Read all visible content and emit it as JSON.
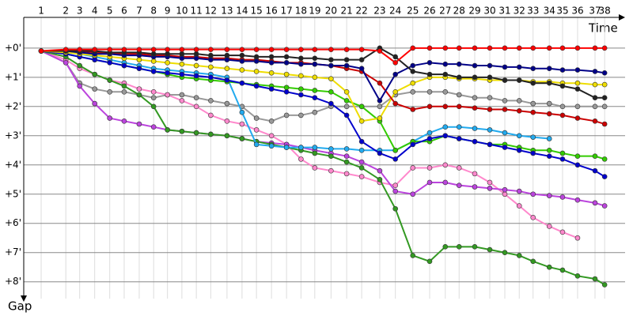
{
  "chart_data": {
    "type": "line",
    "x_label": "Time",
    "y_label": "Gap",
    "xlim": [
      0,
      100
    ],
    "ylim": [
      -1.05,
      8.9
    ],
    "grid": true,
    "xticks": [
      {
        "value": 2.9,
        "label": "1"
      },
      {
        "value": 7.0,
        "label": "2"
      },
      {
        "value": 9.3,
        "label": "3"
      },
      {
        "value": 11.8,
        "label": "4"
      },
      {
        "value": 14.3,
        "label": "5"
      },
      {
        "value": 16.7,
        "label": "6"
      },
      {
        "value": 19.2,
        "label": "7"
      },
      {
        "value": 21.6,
        "label": "8"
      },
      {
        "value": 23.9,
        "label": "9"
      },
      {
        "value": 26.3,
        "label": "10"
      },
      {
        "value": 28.7,
        "label": "11"
      },
      {
        "value": 31.1,
        "label": "12"
      },
      {
        "value": 33.8,
        "label": "13"
      },
      {
        "value": 36.3,
        "label": "14"
      },
      {
        "value": 38.7,
        "label": "15"
      },
      {
        "value": 41.2,
        "label": "16"
      },
      {
        "value": 43.7,
        "label": "17"
      },
      {
        "value": 46.1,
        "label": "18"
      },
      {
        "value": 48.4,
        "label": "19"
      },
      {
        "value": 51.1,
        "label": "20"
      },
      {
        "value": 53.7,
        "label": "21"
      },
      {
        "value": 56.2,
        "label": "22"
      },
      {
        "value": 59.2,
        "label": "23"
      },
      {
        "value": 61.8,
        "label": "24"
      },
      {
        "value": 64.7,
        "label": "25"
      },
      {
        "value": 67.5,
        "label": "26"
      },
      {
        "value": 70.1,
        "label": "27"
      },
      {
        "value": 72.4,
        "label": "28"
      },
      {
        "value": 75.0,
        "label": "29"
      },
      {
        "value": 77.5,
        "label": "30"
      },
      {
        "value": 80.0,
        "label": "31"
      },
      {
        "value": 82.4,
        "label": "32"
      },
      {
        "value": 84.7,
        "label": "33"
      },
      {
        "value": 87.4,
        "label": "34"
      },
      {
        "value": 89.6,
        "label": "35"
      },
      {
        "value": 92.1,
        "label": "36"
      },
      {
        "value": 95.0,
        "label": "37"
      },
      {
        "value": 96.6,
        "label": "38"
      }
    ],
    "yticks": [
      {
        "value": 0,
        "label": "+0'"
      },
      {
        "value": 1,
        "label": "+1'"
      },
      {
        "value": 2,
        "label": "+2'"
      },
      {
        "value": 3,
        "label": "+3'"
      },
      {
        "value": 4,
        "label": "+4'"
      },
      {
        "value": 5,
        "label": "+5'"
      },
      {
        "value": 6,
        "label": "+6'"
      },
      {
        "value": 7,
        "label": "+7'"
      },
      {
        "value": 8,
        "label": "+8'"
      }
    ],
    "series": [
      {
        "color": "#999999",
        "values": [
          0.1,
          0.5,
          1.2,
          1.4,
          1.5,
          1.5,
          1.6,
          1.7,
          1.6,
          1.6,
          1.7,
          1.8,
          1.9,
          2.0,
          2.4,
          2.5,
          2.3,
          2.3,
          2.2,
          2.0,
          2.0,
          2.0,
          2.0,
          1.6,
          1.5,
          1.5,
          1.5,
          1.6,
          1.7,
          1.7,
          1.8,
          1.8,
          1.9,
          1.9,
          2.0,
          2.0,
          2.0,
          2.0
        ]
      },
      {
        "color": "#ff88cc",
        "values": [
          0.1,
          0.4,
          0.7,
          0.9,
          1.1,
          1.2,
          1.4,
          1.5,
          1.6,
          1.8,
          2.0,
          2.3,
          2.5,
          2.6,
          2.8,
          3.0,
          3.3,
          3.8,
          4.1,
          4.2,
          4.3,
          4.4,
          4.6,
          4.7,
          4.1,
          4.1,
          4.0,
          4.1,
          4.3,
          4.6,
          5.0,
          5.4,
          5.8,
          6.1,
          6.3,
          6.5,
          null,
          null
        ]
      },
      {
        "color": "#bb44dd",
        "values": [
          0.1,
          0.5,
          1.3,
          1.9,
          2.4,
          2.5,
          2.6,
          2.7,
          2.8,
          2.85,
          2.9,
          2.95,
          3.0,
          3.1,
          3.2,
          3.25,
          3.3,
          3.4,
          3.5,
          3.6,
          3.7,
          3.9,
          4.2,
          4.9,
          5.0,
          4.6,
          4.6,
          4.7,
          4.75,
          4.8,
          4.85,
          4.9,
          5.0,
          5.05,
          5.1,
          5.2,
          5.3,
          5.4
        ]
      },
      {
        "color": "#339922",
        "values": [
          0.1,
          0.3,
          0.6,
          0.9,
          1.1,
          1.3,
          1.6,
          2.0,
          2.8,
          2.85,
          2.9,
          2.95,
          3.0,
          3.1,
          3.2,
          3.3,
          3.4,
          3.5,
          3.6,
          3.7,
          3.9,
          4.1,
          4.5,
          5.5,
          7.1,
          7.3,
          6.8,
          6.8,
          6.8,
          6.9,
          7.0,
          7.1,
          7.3,
          7.5,
          7.6,
          7.8,
          7.9,
          8.1
        ]
      },
      {
        "color": "#22aaee",
        "values": [
          0.1,
          0.15,
          0.2,
          0.3,
          0.4,
          0.5,
          0.6,
          0.7,
          0.75,
          0.8,
          0.85,
          0.9,
          1.0,
          2.2,
          3.3,
          3.35,
          3.4,
          3.4,
          3.4,
          3.45,
          3.45,
          3.5,
          3.5,
          3.5,
          3.2,
          2.9,
          2.7,
          2.7,
          2.75,
          2.8,
          2.9,
          3.0,
          3.05,
          3.1,
          null,
          null,
          null,
          null
        ]
      },
      {
        "color": "#33cc00",
        "values": [
          0.1,
          0.2,
          0.3,
          0.4,
          0.5,
          0.6,
          0.7,
          0.8,
          0.9,
          1.0,
          1.05,
          1.1,
          1.15,
          1.2,
          1.25,
          1.3,
          1.35,
          1.4,
          1.45,
          1.5,
          1.8,
          2.0,
          2.5,
          3.5,
          3.2,
          3.2,
          3.0,
          3.1,
          3.2,
          3.3,
          3.3,
          3.4,
          3.5,
          3.5,
          3.6,
          3.7,
          3.7,
          3.8
        ]
      },
      {
        "color": "#0000cc",
        "values": [
          0.1,
          0.2,
          0.3,
          0.4,
          0.5,
          0.6,
          0.7,
          0.8,
          0.85,
          0.9,
          0.95,
          1.0,
          1.1,
          1.2,
          1.3,
          1.4,
          1.5,
          1.6,
          1.7,
          1.9,
          2.3,
          3.2,
          3.6,
          3.8,
          3.3,
          3.1,
          3.0,
          3.1,
          3.2,
          3.3,
          3.4,
          3.5,
          3.6,
          3.7,
          3.8,
          4.0,
          4.2,
          4.4
        ]
      },
      {
        "color": "#eedd00",
        "values": [
          0.1,
          0.15,
          0.2,
          0.25,
          0.3,
          0.35,
          0.4,
          0.45,
          0.5,
          0.55,
          0.6,
          0.65,
          0.7,
          0.75,
          0.8,
          0.85,
          0.9,
          0.95,
          1.0,
          1.05,
          1.5,
          2.5,
          2.4,
          1.5,
          1.2,
          1.0,
          1.0,
          1.05,
          1.05,
          1.1,
          1.1,
          1.1,
          1.15,
          1.15,
          1.2,
          1.2,
          1.25,
          1.25
        ]
      },
      {
        "color": "#cc0000",
        "values": [
          0.1,
          0.1,
          0.1,
          0.15,
          0.15,
          0.2,
          0.2,
          0.25,
          0.25,
          0.3,
          0.3,
          0.35,
          0.35,
          0.4,
          0.4,
          0.45,
          0.5,
          0.5,
          0.55,
          0.6,
          0.7,
          0.8,
          1.2,
          1.9,
          2.1,
          2.0,
          2.0,
          2.0,
          2.05,
          2.1,
          2.1,
          2.15,
          2.2,
          2.25,
          2.3,
          2.4,
          2.5,
          2.6
        ]
      },
      {
        "color": "#000088",
        "values": [
          0.1,
          0.1,
          0.15,
          0.2,
          0.2,
          0.25,
          0.25,
          0.3,
          0.3,
          0.35,
          0.35,
          0.4,
          0.4,
          0.45,
          0.45,
          0.5,
          0.5,
          0.55,
          0.55,
          0.6,
          0.6,
          0.7,
          1.8,
          0.9,
          0.6,
          0.5,
          0.55,
          0.55,
          0.6,
          0.6,
          0.65,
          0.65,
          0.7,
          0.7,
          0.75,
          0.75,
          0.8,
          0.85
        ]
      },
      {
        "color": "#222222",
        "values": [
          0.1,
          0.1,
          0.1,
          0.1,
          0.15,
          0.15,
          0.15,
          0.2,
          0.2,
          0.2,
          0.2,
          0.25,
          0.25,
          0.25,
          0.3,
          0.3,
          0.3,
          0.35,
          0.35,
          0.4,
          0.4,
          0.4,
          0.0,
          0.3,
          0.8,
          0.9,
          0.9,
          1.0,
          1.0,
          1.0,
          1.1,
          1.1,
          1.2,
          1.2,
          1.3,
          1.4,
          1.7,
          1.7
        ]
      },
      {
        "color": "#ff0000",
        "values": [
          0.1,
          0.05,
          0.05,
          0.05,
          0.05,
          0.05,
          0.05,
          0.05,
          0.05,
          0.05,
          0.05,
          0.05,
          0.05,
          0.05,
          0.05,
          0.05,
          0.05,
          0.05,
          0.05,
          0.05,
          0.05,
          0.05,
          0.1,
          0.5,
          0,
          0,
          0,
          0,
          0,
          0,
          0,
          0,
          0,
          0,
          0,
          0,
          0,
          0
        ]
      }
    ]
  }
}
